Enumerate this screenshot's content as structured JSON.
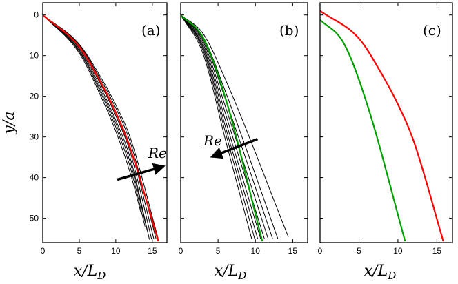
{
  "chart_data": [
    {
      "type": "line",
      "panel_label": "(a)",
      "xlabel": "x/L",
      "xlabel_sub": "D",
      "ylabel": "y/a",
      "xlim": [
        0,
        17
      ],
      "ylim": [
        56,
        -3
      ],
      "y_inverted": true,
      "xticks": [
        0,
        5,
        10,
        15
      ],
      "yticks": [
        0,
        10,
        20,
        30,
        40,
        50
      ],
      "grid": false,
      "annotation": {
        "text": "Re",
        "arrow_from": [
          10.2,
          40.5
        ],
        "arrow_to": [
          16.0,
          37.5
        ]
      },
      "series": [
        {
          "color": "#000000",
          "width": 1,
          "x": [
            0,
            5,
            8,
            10,
            12,
            14.6
          ],
          "y": [
            0,
            8.3,
            18.1,
            25.9,
            35.3,
            55.2
          ]
        },
        {
          "color": "#000000",
          "width": 1,
          "x": [
            0,
            5,
            8,
            10,
            12,
            14.9
          ],
          "y": [
            0,
            8.0,
            17.3,
            24.8,
            33.9,
            55.1
          ]
        },
        {
          "color": "#000000",
          "width": 1,
          "x": [
            0,
            5,
            8,
            10,
            12,
            15.2
          ],
          "y": [
            0,
            7.7,
            16.6,
            23.8,
            32.6,
            55.0
          ]
        },
        {
          "color": "#000000",
          "width": 1,
          "x": [
            0,
            5,
            8,
            10,
            12,
            15.5
          ],
          "y": [
            0,
            7.4,
            16.1,
            22.9,
            31.4,
            55.0
          ]
        },
        {
          "color": "#000000",
          "width": 1,
          "x": [
            0,
            5,
            8,
            10,
            12,
            15.8
          ],
          "y": [
            0,
            7.2,
            15.5,
            22.1,
            30.3,
            55.0
          ]
        },
        {
          "color": "#000000",
          "width": 1,
          "x": [
            0,
            5,
            8,
            10,
            12,
            14.0
          ],
          "y": [
            0,
            9.0,
            19.4,
            27.6,
            37.6,
            52.0
          ]
        },
        {
          "color": "#000000",
          "width": 1,
          "x": [
            0,
            5,
            8,
            10,
            12,
            13.5
          ],
          "y": [
            0,
            9.4,
            20.2,
            28.6,
            39.0,
            49.0
          ]
        },
        {
          "color": "#000000",
          "width": 1,
          "x": [
            0,
            5,
            8,
            10,
            12,
            14.3
          ],
          "y": [
            0,
            8.7,
            18.8,
            26.7,
            36.4,
            53.0
          ]
        },
        {
          "color": "#ff0000",
          "width": 2.2,
          "name": "",
          "x": [
            0,
            5,
            8,
            10,
            12,
            15.8
          ],
          "y": [
            0,
            7.8,
            16.8,
            24.0,
            32.9,
            55.5
          ]
        }
      ]
    },
    {
      "type": "line",
      "panel_label": "(b)",
      "xlabel": "x/L",
      "xlabel_sub": "D",
      "xlim": [
        0,
        17
      ],
      "ylim": [
        56,
        -3
      ],
      "y_inverted": true,
      "xticks": [
        0,
        5,
        10,
        15
      ],
      "yticks": [
        0,
        10,
        20,
        30,
        40,
        50
      ],
      "grid": false,
      "annotation": {
        "text": "Re",
        "arrow_from": [
          10.3,
          30.5
        ],
        "arrow_to": [
          4.7,
          34.5
        ]
      },
      "series": [
        {
          "color": "#000000",
          "width": 1,
          "x": [
            0,
            3,
            6,
            9.5
          ],
          "y": [
            0,
            9.6,
            30.8,
            55.0
          ]
        },
        {
          "color": "#000000",
          "width": 1,
          "x": [
            0,
            3,
            6,
            9.9
          ],
          "y": [
            0,
            8.8,
            29.0,
            55.0
          ]
        },
        {
          "color": "#000000",
          "width": 1,
          "x": [
            0,
            3,
            6,
            10.3
          ],
          "y": [
            0,
            8.2,
            27.6,
            55.0
          ]
        },
        {
          "color": "#000000",
          "width": 1,
          "x": [
            0,
            3,
            6,
            10.7
          ],
          "y": [
            0,
            7.7,
            26.0,
            55.0
          ]
        },
        {
          "color": "#000000",
          "width": 1,
          "x": [
            0,
            3,
            6,
            11.2
          ],
          "y": [
            0,
            7.1,
            24.3,
            55.0
          ]
        },
        {
          "color": "#000000",
          "width": 1,
          "x": [
            0,
            3,
            6,
            11.7
          ],
          "y": [
            0,
            6.5,
            22.6,
            55.0
          ]
        },
        {
          "color": "#000000",
          "width": 1,
          "x": [
            0,
            3,
            6,
            12.3
          ],
          "y": [
            0,
            6.0,
            20.8,
            55.0
          ]
        },
        {
          "color": "#000000",
          "width": 1,
          "x": [
            0,
            3,
            6,
            13.0
          ],
          "y": [
            0,
            5.4,
            18.9,
            55.0
          ]
        },
        {
          "color": "#000000",
          "width": 1,
          "x": [
            0,
            3,
            6,
            14.4
          ],
          "y": [
            0,
            4.6,
            15.9,
            54.5
          ]
        },
        {
          "color": "#00a000",
          "width": 2.2,
          "name": "",
          "x": [
            0,
            3,
            6,
            10.9
          ],
          "y": [
            0,
            5.6,
            20.5,
            55.5
          ]
        }
      ]
    },
    {
      "type": "line",
      "panel_label": "(c)",
      "xlabel": "x/L",
      "xlabel_sub": "D",
      "xlim": [
        0,
        17
      ],
      "ylim": [
        56,
        -3
      ],
      "y_inverted": true,
      "xticks": [
        0,
        5,
        10,
        15
      ],
      "yticks": [
        0,
        10,
        20,
        30,
        40,
        50
      ],
      "grid": false,
      "series": [
        {
          "color": "#ff0000",
          "width": 2.2,
          "name": "",
          "x": [
            0,
            5,
            8,
            10,
            12,
            15.8
          ],
          "y": [
            -1.0,
            5.8,
            14.8,
            22.0,
            30.9,
            55.5
          ]
        },
        {
          "color": "#00a000",
          "width": 2.2,
          "name": "",
          "x": [
            0,
            3,
            6,
            10.9
          ],
          "y": [
            1.2,
            6.8,
            21.7,
            55.5
          ]
        }
      ]
    }
  ]
}
